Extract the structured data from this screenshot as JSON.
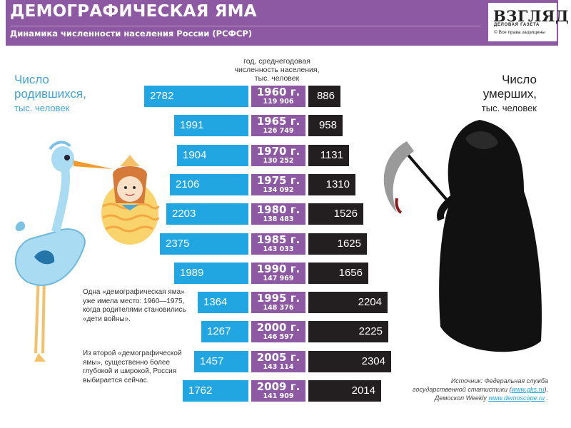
{
  "header": {
    "title": "ДЕМОГРАФИЧЕСКАЯ ЯМА",
    "subtitle": "Динамика численности населения России (РСФСР)"
  },
  "logo": {
    "name": "ВЗГЛЯД",
    "tagline": "ДЕЛОВАЯ ГАЗЕТА",
    "copyright": "© Все права защищены"
  },
  "labels": {
    "births_1": "Число",
    "births_2": "родившихся,",
    "births_3": "тыс. человек",
    "deaths_1": "Число",
    "deaths_2": "умерших,",
    "deaths_3": "тыс. человек",
    "center_1": "год, среднегодовая",
    "center_2": "численность населения,",
    "center_3": "тыс. человек"
  },
  "notes": {
    "note1": "Одна «демографическая яма» уже имела место: 1960—1975, когда родителями становились «дети войны».",
    "note2": "Из второй «демографической ямы», существенно более глубокой и широкой, Россия выбирается сейчас."
  },
  "source": {
    "line1": "Источник: Федеральная служба",
    "line2_text": "государственной статистики (",
    "line2_link": "www.gks.ru",
    "line2_end": "),",
    "line3_text": "Демоскоп Weekly ",
    "line3_link": "www.demoscope.ru",
    "line3_end": " ."
  },
  "colors": {
    "purple": "#8e59a3",
    "births_blue": "#21a6e2",
    "deaths_black": "#231f20"
  },
  "icons": [
    "stork-icon",
    "baby-bundle-icon",
    "grim-reaper-icon"
  ],
  "chart_data": {
    "type": "bar",
    "categories": [
      "1960 г.",
      "1965 г.",
      "1970 г.",
      "1975 г.",
      "1980 г.",
      "1985 г.",
      "1990 г.",
      "1995 г.",
      "2000 г.",
      "2005 г.",
      "2009 г."
    ],
    "population_labels": [
      "119 906",
      "126 749",
      "130 252",
      "134 092",
      "138 483",
      "143 033",
      "147 969",
      "148 376",
      "146 597",
      "143 114",
      "141 909"
    ],
    "series": [
      {
        "name": "Число родившихся, тыс. человек",
        "values": [
          2782,
          1991,
          1904,
          2106,
          2203,
          2375,
          1989,
          1364,
          1267,
          1457,
          1762
        ]
      },
      {
        "name": "Число умерших, тыс. человек",
        "values": [
          886,
          958,
          1131,
          1310,
          1526,
          1625,
          1656,
          2204,
          2225,
          2304,
          2014
        ]
      }
    ]
  }
}
